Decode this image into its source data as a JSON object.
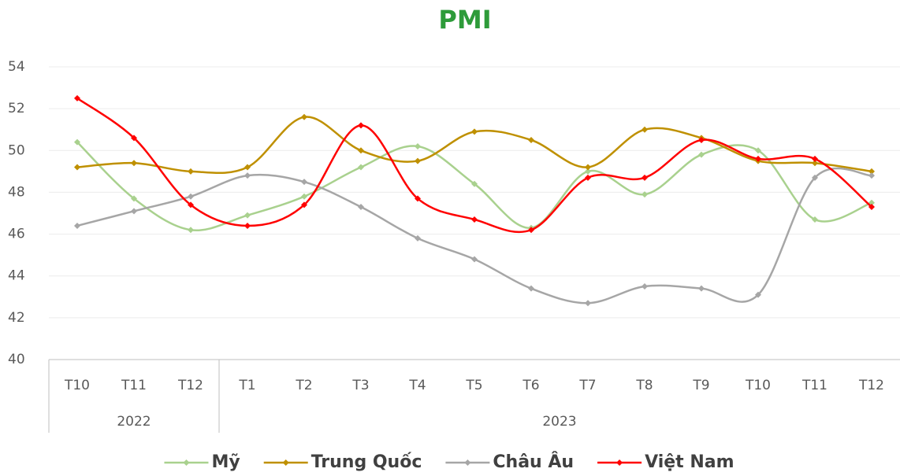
{
  "chart_data": {
    "type": "line",
    "title": "PMI",
    "categories": [
      "T10",
      "T11",
      "T12",
      "T1",
      "T2",
      "T3",
      "T4",
      "T5",
      "T6",
      "T7",
      "T8",
      "T9",
      "T10",
      "T11",
      "T12"
    ],
    "x_groups": [
      {
        "label": "2022",
        "span": 3
      },
      {
        "label": "2023",
        "span": 12
      }
    ],
    "ylim": [
      40,
      54
    ],
    "yticks": [
      40,
      42,
      44,
      46,
      48,
      50,
      52,
      54
    ],
    "grid": true,
    "smooth": true,
    "legend": "bottom",
    "series": [
      {
        "name": "Mỹ",
        "color": "#a9d18e",
        "values": [
          50.4,
          47.7,
          46.2,
          46.9,
          47.8,
          49.2,
          50.2,
          48.4,
          46.3,
          49.0,
          47.9,
          49.8,
          50.0,
          46.7,
          47.5
        ]
      },
      {
        "name": "Trung Quốc",
        "color": "#bf9000",
        "values": [
          49.2,
          49.4,
          49.0,
          49.2,
          51.6,
          50.0,
          49.5,
          50.9,
          50.5,
          49.2,
          51.0,
          50.6,
          49.5,
          49.4,
          49.0
        ]
      },
      {
        "name": "Châu Âu",
        "color": "#a6a6a6",
        "values": [
          46.4,
          47.1,
          47.8,
          48.8,
          48.5,
          47.3,
          45.8,
          44.8,
          43.4,
          42.7,
          43.5,
          43.4,
          43.1,
          48.7,
          48.8
        ]
      },
      {
        "name": "Việt Nam",
        "color": "#ff0000",
        "values": [
          52.5,
          50.6,
          47.4,
          46.4,
          47.4,
          51.2,
          47.7,
          46.7,
          46.2,
          48.7,
          48.7,
          50.5,
          49.6,
          49.6,
          47.3
        ]
      }
    ]
  }
}
